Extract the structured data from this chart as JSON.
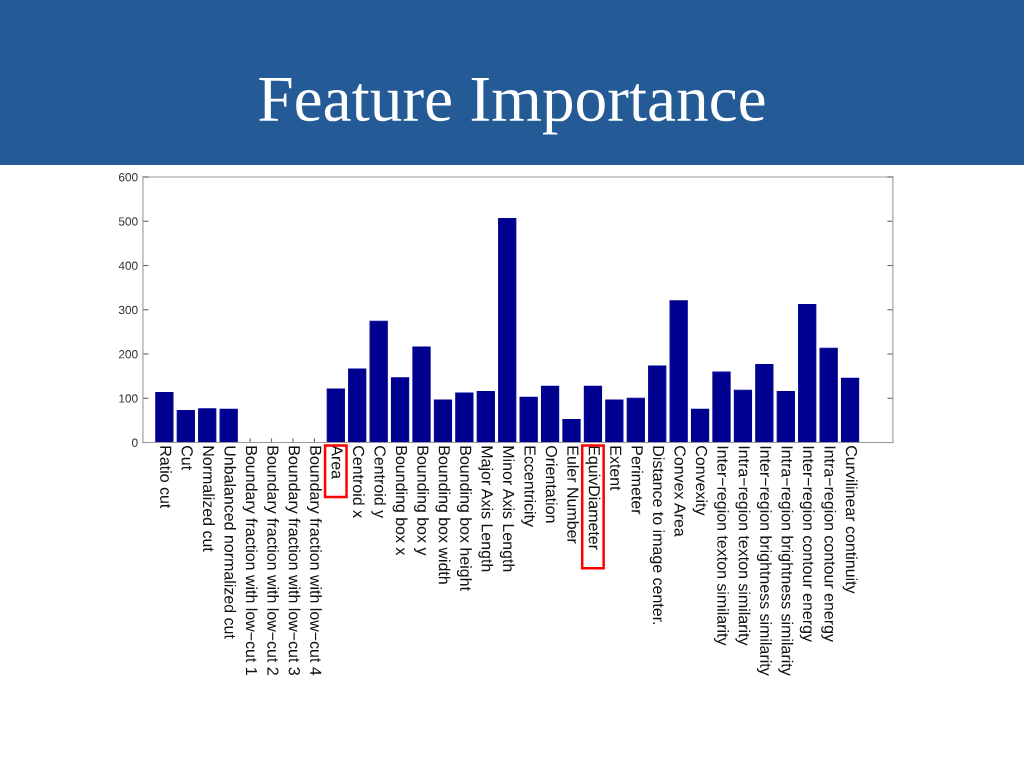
{
  "chart_data": {
    "type": "bar",
    "title": "Feature Importance",
    "categories": [
      "Ratio cut",
      "Cut",
      "Normalized cut",
      "Unbalanced normalized cut",
      "Boundary fraction with low−cut 1",
      "Boundary fraction with low−cut 2",
      "Boundary fraction with low−cut 3",
      "Boundary fraction with low−cut 4",
      "Area",
      "Centroid x",
      "Centroid y",
      "Bounding box x",
      "Bounding box y",
      "Bounding box width",
      "Bounding box height",
      "Major Axis Length",
      "Minor Axis Length",
      "Eccentricity",
      "Orientation",
      "Euler Number",
      "EquivDiameter",
      "Extent",
      "Perimeter",
      "Distance to image center.",
      "Convex Area",
      "Convexity",
      "Inter−region texton similarity",
      "Intra−region texton similarity",
      "Inter−region brightness similarity",
      "Intra−region brightness similarity",
      "Inter−region contour energy",
      "Intra−region contour energy",
      "Curvilinear continuity"
    ],
    "values": [
      113,
      72,
      76,
      75,
      0,
      0,
      0,
      0,
      121,
      166,
      274,
      146,
      216,
      96,
      112,
      115,
      506,
      102,
      127,
      52,
      127,
      96,
      100,
      173,
      320,
      75,
      159,
      118,
      176,
      115,
      312,
      213,
      145
    ],
    "color": "#000090",
    "ylim": [
      0,
      600
    ],
    "yticks": [
      0,
      100,
      200,
      300,
      400,
      500,
      600
    ],
    "grid": false
  }
}
